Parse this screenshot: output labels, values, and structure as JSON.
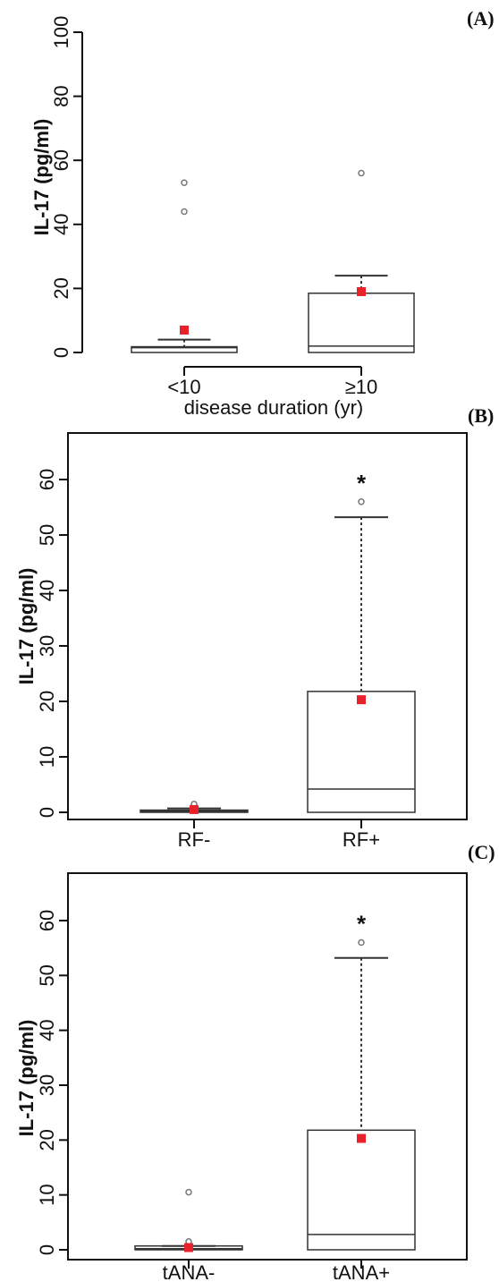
{
  "chart_data": [
    {
      "type": "boxplot",
      "panel": "(A)",
      "ylabel": "IL-17 (pg/ml)",
      "xlabel": "disease duration (yr)",
      "ylim": [
        0,
        100
      ],
      "yticks": [
        0,
        20,
        40,
        60,
        80,
        100
      ],
      "boxed_frame": false,
      "categories": [
        "<10",
        "≥10"
      ],
      "groups": [
        {
          "category": "<10",
          "min": 0,
          "q1": 0,
          "median": 1.5,
          "q3": 1.8,
          "max": 4,
          "mean": 7,
          "outliers": [
            44,
            53
          ],
          "significant": false
        },
        {
          "category": "≥10",
          "min": 0,
          "q1": 0,
          "median": 2,
          "q3": 18.5,
          "max": 24,
          "mean": 19,
          "outliers": [
            56
          ],
          "significant": false
        }
      ]
    },
    {
      "type": "boxplot",
      "panel": "(B)",
      "ylabel": "IL-17 (pg/ml)",
      "xlabel": "",
      "ylim": [
        0,
        60
      ],
      "yticks": [
        0,
        10,
        20,
        30,
        40,
        50,
        60
      ],
      "boxed_frame": true,
      "categories": [
        "RF-",
        "RF+"
      ],
      "groups": [
        {
          "category": "RF-",
          "min": 0,
          "q1": 0,
          "median": 0.2,
          "q3": 0.4,
          "max": 0.7,
          "mean": 0.5,
          "outliers": [
            1.5
          ],
          "significant": false
        },
        {
          "category": "RF+",
          "min": 0,
          "q1": 0,
          "median": 4.2,
          "q3": 21.8,
          "max": 53.2,
          "mean": 20.3,
          "outliers": [
            56
          ],
          "significant": true
        }
      ],
      "annotation": "*"
    },
    {
      "type": "boxplot",
      "panel": "(C)",
      "ylabel": "IL-17 (pg/ml)",
      "xlabel": "",
      "ylim": [
        0,
        60
      ],
      "yticks": [
        0,
        10,
        20,
        30,
        40,
        50,
        60
      ],
      "boxed_frame": true,
      "categories": [
        "tANA-",
        "tANA+"
      ],
      "groups": [
        {
          "category": "tANA-",
          "min": 0,
          "q1": 0,
          "median": 0.2,
          "q3": 0.7,
          "max": 0.7,
          "mean": 0.4,
          "outliers": [
            1.5,
            10.5
          ],
          "significant": false
        },
        {
          "category": "tANA+",
          "min": 0,
          "q1": 0,
          "median": 2.8,
          "q3": 21.8,
          "max": 53.2,
          "mean": 20.3,
          "outliers": [
            56
          ],
          "significant": true
        }
      ],
      "annotation": "*"
    }
  ],
  "colors": {
    "mean_marker": "#e8212b",
    "box_stroke": "#333333",
    "outlier_stroke": "#777777",
    "axis": "#111111"
  }
}
